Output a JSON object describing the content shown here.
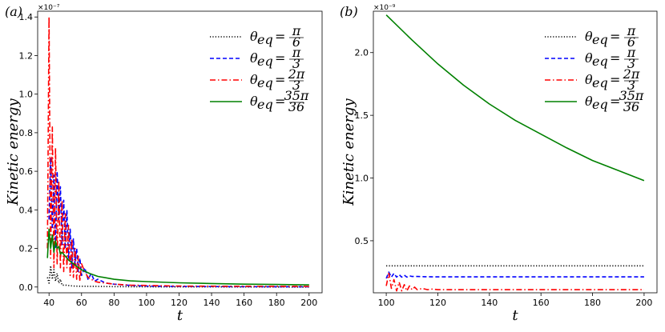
{
  "chart_data": [
    {
      "type": "line",
      "panel_label": "(a)",
      "xlabel": "t",
      "ylabel": "Kinetic energy",
      "y_multiplier": "×10⁻⁷",
      "xlim": [
        33,
        208
      ],
      "ylim": [
        -0.03,
        1.43
      ],
      "xticks": [
        40,
        60,
        80,
        100,
        120,
        140,
        160,
        180,
        200
      ],
      "yticks": [
        0.0,
        0.2,
        0.4,
        0.6,
        0.8,
        1.0,
        1.2,
        1.4
      ],
      "ytick_labels": [
        "0.0",
        "0.2",
        "0.4",
        "0.6",
        "0.8",
        "1.0",
        "1.2",
        "1.4"
      ],
      "legend_position": "top-right",
      "series": [
        {
          "name": "θeq = π/6",
          "color": "#000000",
          "dash": "dotted",
          "x": [
            39,
            40,
            41,
            42,
            43,
            44,
            45,
            46,
            47,
            48,
            50,
            55,
            60,
            70,
            80,
            100,
            200
          ],
          "y": [
            0.05,
            0.02,
            0.11,
            0.04,
            0.09,
            0.03,
            0.07,
            0.02,
            0.04,
            0.01,
            0.01,
            0.005,
            0.004,
            0.003,
            0.002,
            0.001,
            0.0
          ]
        },
        {
          "name": "θeq = π/3",
          "color": "#0000ff",
          "dash": "dashed",
          "x": [
            40,
            41,
            42,
            43,
            44,
            45,
            46,
            47,
            48,
            49,
            50,
            51,
            52,
            53,
            54,
            55,
            56,
            57,
            58,
            59,
            60,
            62,
            64,
            66,
            68,
            70,
            75,
            80,
            90,
            100,
            120,
            150,
            200
          ],
          "y": [
            0.35,
            0.67,
            0.3,
            0.58,
            0.2,
            0.6,
            0.35,
            0.52,
            0.22,
            0.45,
            0.2,
            0.4,
            0.15,
            0.3,
            0.1,
            0.25,
            0.12,
            0.2,
            0.08,
            0.15,
            0.06,
            0.1,
            0.04,
            0.07,
            0.03,
            0.04,
            0.02,
            0.015,
            0.008,
            0.005,
            0.003,
            0.002,
            0.001
          ]
        },
        {
          "name": "θeq = 2π/3",
          "color": "#ff0000",
          "dash": "dashdot",
          "x": [
            39,
            40,
            41,
            42,
            43,
            44,
            45,
            46,
            47,
            48,
            49,
            50,
            51,
            52,
            53,
            54,
            55,
            56,
            57,
            58,
            59,
            60,
            62,
            64,
            66,
            68,
            70,
            75,
            80,
            90,
            100,
            120,
            150,
            200
          ],
          "y": [
            0.2,
            1.4,
            0.15,
            0.83,
            0.1,
            0.72,
            0.12,
            0.55,
            0.1,
            0.45,
            0.08,
            0.38,
            0.1,
            0.32,
            0.06,
            0.25,
            0.05,
            0.2,
            0.04,
            0.16,
            0.03,
            0.12,
            0.08,
            0.05,
            0.04,
            0.03,
            0.025,
            0.02,
            0.015,
            0.01,
            0.008,
            0.005,
            0.004,
            0.003
          ]
        },
        {
          "name": "θeq = 35π/36",
          "color": "#008000",
          "dash": "solid",
          "x": [
            39,
            40,
            41,
            42,
            43,
            44,
            45,
            46,
            47,
            48,
            50,
            52,
            55,
            60,
            65,
            70,
            80,
            90,
            100,
            120,
            140,
            160,
            180,
            200
          ],
          "y": [
            0.15,
            0.3,
            0.2,
            0.27,
            0.18,
            0.24,
            0.2,
            0.21,
            0.17,
            0.18,
            0.16,
            0.14,
            0.12,
            0.09,
            0.07,
            0.055,
            0.04,
            0.032,
            0.028,
            0.022,
            0.018,
            0.015,
            0.013,
            0.011
          ]
        }
      ]
    },
    {
      "type": "line",
      "panel_label": "(b)",
      "xlabel": "t",
      "ylabel": "Kinetic energy",
      "y_multiplier": "×10⁻⁹",
      "xlim": [
        95,
        205
      ],
      "ylim": [
        0.085,
        2.33
      ],
      "xticks": [
        100,
        120,
        140,
        160,
        180,
        200
      ],
      "yticks": [
        0.5,
        1.0,
        1.5,
        2.0
      ],
      "ytick_labels": [
        "0.5",
        "1.0",
        "1.5",
        "2.0"
      ],
      "legend_position": "top-right",
      "series": [
        {
          "name": "θeq = π/6",
          "color": "#000000",
          "dash": "dotted",
          "x": [
            100,
            200
          ],
          "y": [
            0.3,
            0.3
          ]
        },
        {
          "name": "θeq = π/3",
          "color": "#0000ff",
          "dash": "dashed",
          "x": [
            100,
            101,
            102,
            103,
            104,
            105,
            106,
            107,
            108,
            109,
            110,
            112,
            115,
            120,
            200
          ],
          "y": [
            0.2,
            0.25,
            0.21,
            0.24,
            0.21,
            0.23,
            0.21,
            0.225,
            0.21,
            0.22,
            0.215,
            0.215,
            0.213,
            0.212,
            0.212
          ]
        },
        {
          "name": "θeq = 2π/3",
          "color": "#ff0000",
          "dash": "dashdot",
          "x": [
            100,
            101,
            102,
            103,
            104,
            105,
            106,
            107,
            108,
            109,
            110,
            111,
            112,
            114,
            116,
            118,
            120,
            200
          ],
          "y": [
            0.14,
            0.24,
            0.12,
            0.19,
            0.1,
            0.17,
            0.1,
            0.15,
            0.1,
            0.14,
            0.11,
            0.13,
            0.11,
            0.12,
            0.11,
            0.115,
            0.11,
            0.11
          ]
        },
        {
          "name": "θeq = 35π/36",
          "color": "#008000",
          "dash": "solid",
          "x": [
            100,
            110,
            120,
            130,
            140,
            150,
            160,
            170,
            180,
            190,
            200
          ],
          "y": [
            2.3,
            2.1,
            1.91,
            1.74,
            1.59,
            1.46,
            1.35,
            1.24,
            1.14,
            1.06,
            0.98
          ]
        }
      ]
    }
  ],
  "legend": [
    {
      "prefix": "θ",
      "sub": "eq",
      "equals": "=",
      "num": "π",
      "den": "6"
    },
    {
      "prefix": "θ",
      "sub": "eq",
      "equals": "=",
      "num": "π",
      "den": "3"
    },
    {
      "prefix": "θ",
      "sub": "eq",
      "equals": "=",
      "num": "2π",
      "den": "3"
    },
    {
      "prefix": "θ",
      "sub": "eq",
      "equals": "=",
      "num": "35π",
      "den": "36"
    }
  ]
}
